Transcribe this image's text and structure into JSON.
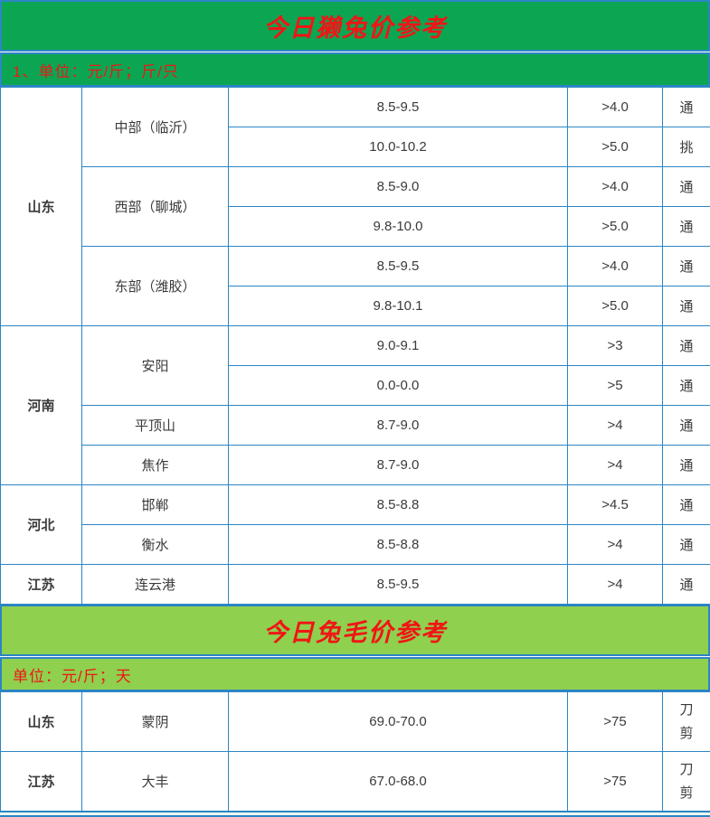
{
  "colors": {
    "header_green": "#0CA653",
    "light_green": "#8FD04E",
    "border_blue": "#2C85C5",
    "title_red": "#F01515",
    "text_dark": "#3A3A3A"
  },
  "rex_section": {
    "title": "今日獭兔价参考",
    "unit_note": "1、单位：元/斤；斤/只",
    "provinces": [
      {
        "name": "山东",
        "regions": [
          {
            "name": "中部（临沂）",
            "quotes": [
              {
                "price": "8.5-9.5",
                "spec": ">4.0",
                "grade": "通"
              },
              {
                "price": "10.0-10.2",
                "spec": ">5.0",
                "grade": "挑"
              }
            ]
          },
          {
            "name": "西部（聊城）",
            "quotes": [
              {
                "price": "8.5-9.0",
                "spec": ">4.0",
                "grade": "通"
              },
              {
                "price": "9.8-10.0",
                "spec": ">5.0",
                "grade": "通"
              }
            ]
          },
          {
            "name": "东部（潍胶）",
            "quotes": [
              {
                "price": "8.5-9.5",
                "spec": ">4.0",
                "grade": "通"
              },
              {
                "price": "9.8-10.1",
                "spec": ">5.0",
                "grade": "通"
              }
            ]
          }
        ]
      },
      {
        "name": "河南",
        "regions": [
          {
            "name": "安阳",
            "quotes": [
              {
                "price": "9.0-9.1",
                "spec": ">3",
                "grade": "通"
              },
              {
                "price": "0.0-0.0",
                "spec": ">5",
                "grade": "通"
              }
            ]
          },
          {
            "name": "平顶山",
            "quotes": [
              {
                "price": "8.7-9.0",
                "spec": ">4",
                "grade": "通"
              }
            ]
          },
          {
            "name": "焦作",
            "quotes": [
              {
                "price": "8.7-9.0",
                "spec": ">4",
                "grade": "通"
              }
            ]
          }
        ]
      },
      {
        "name": "河北",
        "regions": [
          {
            "name": "邯郸",
            "quotes": [
              {
                "price": "8.5-8.8",
                "spec": ">4.5",
                "grade": "通"
              }
            ]
          },
          {
            "name": "衡水",
            "quotes": [
              {
                "price": "8.5-8.8",
                "spec": ">4",
                "grade": "通"
              }
            ]
          }
        ]
      },
      {
        "name": "江苏",
        "regions": [
          {
            "name": "连云港",
            "quotes": [
              {
                "price": "8.5-9.5",
                "spec": ">4",
                "grade": "通"
              }
            ]
          }
        ]
      }
    ]
  },
  "fur_section": {
    "title": "今日兔毛价参考",
    "unit_note": "单位：元/斤；天",
    "provinces": [
      {
        "name": "山东",
        "regions": [
          {
            "name": "蒙阴",
            "quotes": [
              {
                "price": "69.0-70.0",
                "spec": ">75",
                "grade": "刀剪"
              }
            ]
          }
        ]
      },
      {
        "name": "江苏",
        "regions": [
          {
            "name": "大丰",
            "quotes": [
              {
                "price": "67.0-68.0",
                "spec": ">75",
                "grade": "刀剪"
              }
            ]
          }
        ]
      }
    ]
  }
}
